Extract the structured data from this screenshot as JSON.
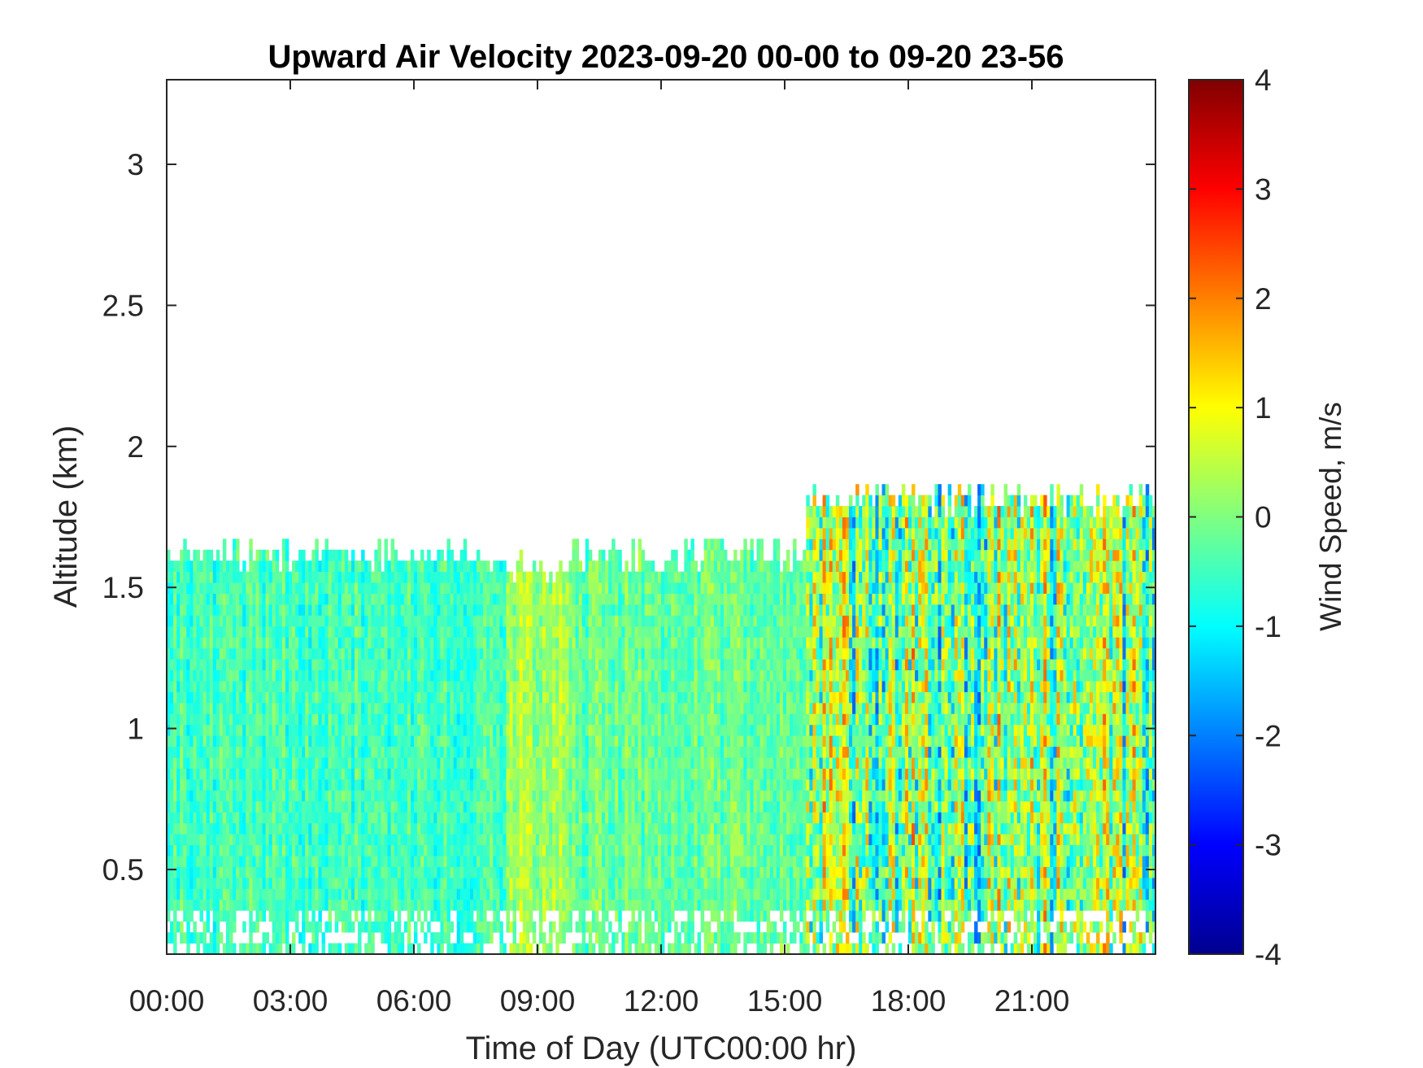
{
  "chart_data": {
    "type": "heatmap",
    "title": "Upward Air Velocity 2023-09-20 00-00 to 09-20 23-56",
    "xlabel": "Time of Day (UTC00:00 hr)",
    "ylabel": "Altitude (km)",
    "xlim_hours": [
      0,
      24
    ],
    "ylim_km": [
      0.2,
      3.3
    ],
    "x_ticks": [
      0,
      3,
      6,
      9,
      12,
      15,
      18,
      21
    ],
    "x_tick_labels": [
      "00:00",
      "03:00",
      "06:00",
      "09:00",
      "12:00",
      "15:00",
      "18:00",
      "21:00"
    ],
    "y_ticks": [
      0.5,
      1,
      1.5,
      2,
      2.5,
      3
    ],
    "y_tick_labels": [
      "0.5",
      "1",
      "1.5",
      "2",
      "2.5",
      "3"
    ],
    "colorbar": {
      "label": "Wind Speed, m/s",
      "colormap": "jet",
      "clim": [
        -4,
        4
      ],
      "ticks": [
        -4,
        -3,
        -2,
        -1,
        0,
        1,
        2,
        3,
        4
      ],
      "tick_labels": [
        "-4",
        "-3",
        "-2",
        "-1",
        "0",
        "1",
        "2",
        "3",
        "4"
      ]
    },
    "grid": false,
    "field_summary": [
      {
        "time_range_hours": [
          0,
          8.2
        ],
        "altitude_top_km": 1.6,
        "typical_velocity_ms": -0.5
      },
      {
        "time_range_hours": [
          8.2,
          9.7
        ],
        "altitude_top_km": 1.55,
        "typical_velocity_ms": 0.3
      },
      {
        "time_range_hours": [
          9.7,
          15.5
        ],
        "altitude_top_km": 1.6,
        "typical_velocity_ms": -0.2
      },
      {
        "time_range_hours": [
          15.5,
          24
        ],
        "altitude_top_km": 1.8,
        "typical_velocity_ms": 0.0,
        "velocity_range_ms": [
          -3.5,
          3.8
        ]
      }
    ]
  }
}
